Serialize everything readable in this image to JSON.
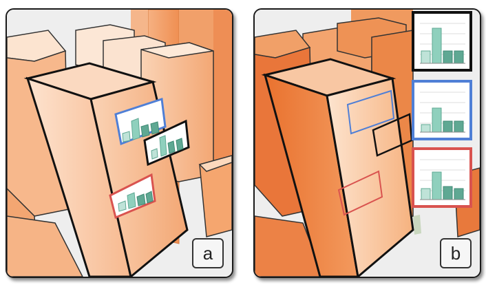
{
  "panels": [
    {
      "id": "a",
      "label": "a"
    },
    {
      "id": "b",
      "label": "b"
    }
  ],
  "colors": {
    "outline_black": "#111111",
    "outline_blue": "#4f7fd6",
    "outline_red": "#d9534f",
    "bar_light": "#bfe3d8",
    "bar_mid": "#8fd0bd",
    "bar_dark": "#5fa893",
    "building_light": "#fbd9bf",
    "building_dark": "#ec8040"
  }
}
